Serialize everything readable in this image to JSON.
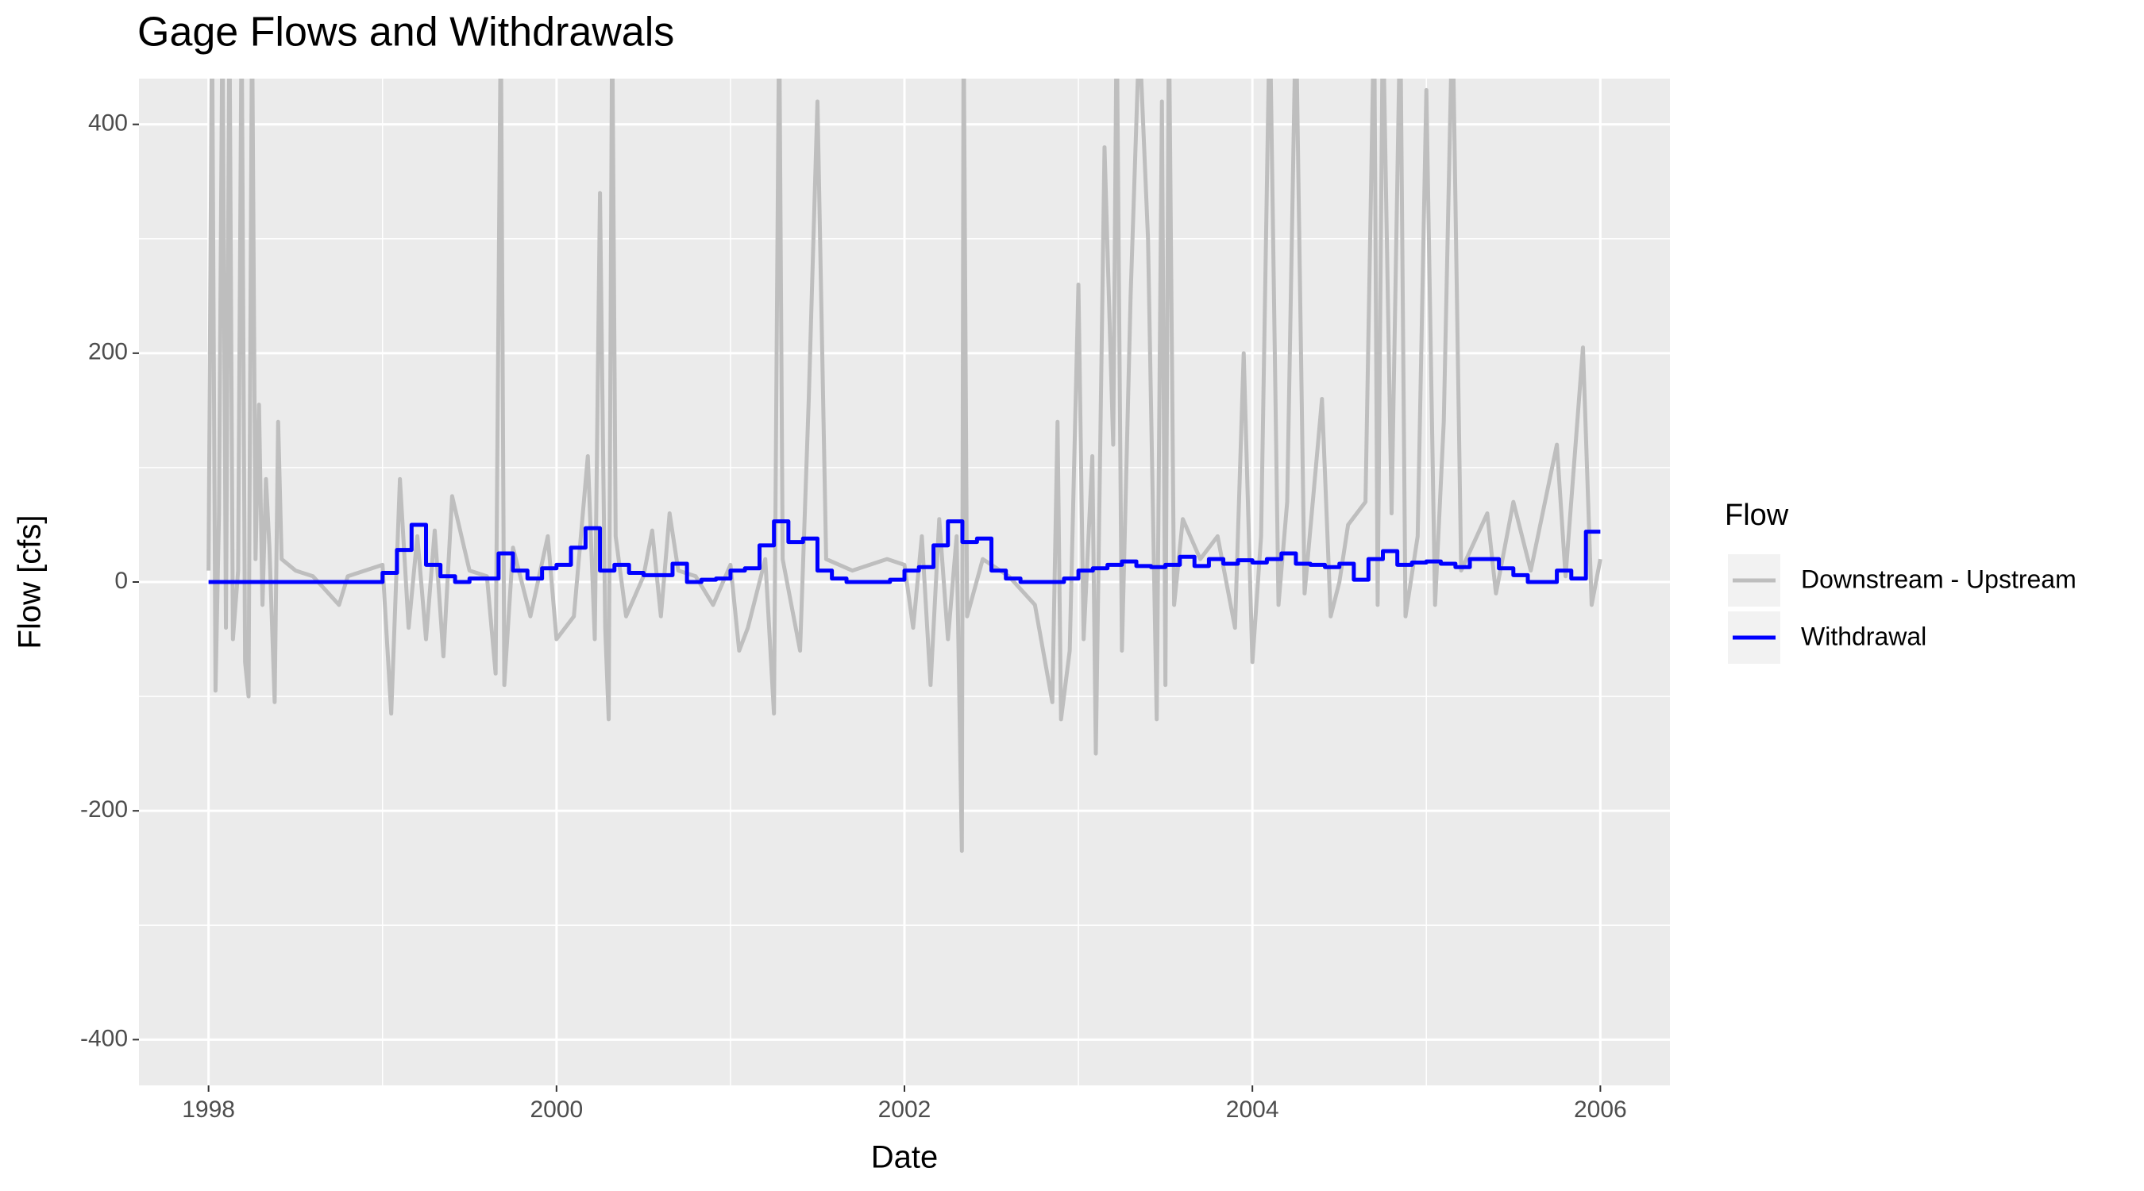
{
  "chart_data": {
    "type": "line",
    "title": "Gage Flows and Withdrawals",
    "x_label": "Date",
    "y_label": "Flow [cfs]",
    "legend_title": "Flow",
    "legend_position": "right",
    "grid": true,
    "xlim": [
      1997.6,
      2006.4
    ],
    "xticks": [
      1998,
      2000,
      2002,
      2004,
      2006
    ],
    "ylim": [
      -440,
      440
    ],
    "yticks": [
      -400,
      -200,
      0,
      200,
      400
    ],
    "series": [
      {
        "name": "Downstream - Upstream",
        "color": "#bebebe",
        "step": false,
        "x": [
          1998.0,
          1998.02,
          1998.04,
          1998.06,
          1998.08,
          1998.1,
          1998.12,
          1998.14,
          1998.17,
          1998.19,
          1998.21,
          1998.23,
          1998.25,
          1998.27,
          1998.29,
          1998.31,
          1998.33,
          1998.35,
          1998.38,
          1998.4,
          1998.42,
          1998.5,
          1998.6,
          1998.75,
          1998.8,
          1999.0,
          1999.05,
          1999.1,
          1999.15,
          1999.2,
          1999.25,
          1999.3,
          1999.35,
          1999.4,
          1999.5,
          1999.6,
          1999.65,
          1999.68,
          1999.7,
          1999.75,
          1999.85,
          1999.95,
          2000.0,
          2000.1,
          2000.18,
          2000.22,
          2000.25,
          2000.28,
          2000.3,
          2000.32,
          2000.34,
          2000.4,
          2000.5,
          2000.55,
          2000.6,
          2000.65,
          2000.7,
          2000.8,
          2000.9,
          2001.0,
          2001.05,
          2001.1,
          2001.2,
          2001.25,
          2001.28,
          2001.3,
          2001.4,
          2001.45,
          2001.5,
          2001.55,
          2001.7,
          2001.9,
          2002.0,
          2002.05,
          2002.1,
          2002.15,
          2002.2,
          2002.25,
          2002.3,
          2002.33,
          2002.34,
          2002.36,
          2002.45,
          2002.6,
          2002.75,
          2002.85,
          2002.88,
          2002.9,
          2002.95,
          2003.0,
          2003.03,
          2003.08,
          2003.1,
          2003.15,
          2003.2,
          2003.22,
          2003.25,
          2003.3,
          2003.35,
          2003.4,
          2003.45,
          2003.48,
          2003.5,
          2003.52,
          2003.55,
          2003.6,
          2003.7,
          2003.8,
          2003.9,
          2003.95,
          2004.0,
          2004.05,
          2004.1,
          2004.15,
          2004.2,
          2004.25,
          2004.3,
          2004.4,
          2004.45,
          2004.5,
          2004.55,
          2004.65,
          2004.7,
          2004.72,
          2004.75,
          2004.8,
          2004.85,
          2004.88,
          2004.95,
          2005.0,
          2005.05,
          2005.1,
          2005.15,
          2005.2,
          2005.35,
          2005.4,
          2005.5,
          2005.6,
          2005.75,
          2005.8,
          2005.9,
          2005.95,
          2006.0
        ],
        "values": [
          10,
          500,
          -95,
          60,
          500,
          -40,
          500,
          -50,
          10,
          500,
          -70,
          -100,
          500,
          20,
          155,
          -20,
          90,
          30,
          -105,
          140,
          20,
          10,
          5,
          -20,
          5,
          15,
          -115,
          90,
          -40,
          40,
          -50,
          45,
          -65,
          75,
          10,
          5,
          -80,
          500,
          -90,
          30,
          -30,
          40,
          -50,
          -30,
          110,
          -50,
          340,
          -40,
          -120,
          500,
          40,
          -30,
          5,
          45,
          -30,
          60,
          10,
          5,
          -20,
          15,
          -60,
          -40,
          20,
          -115,
          500,
          20,
          -60,
          160,
          420,
          20,
          10,
          20,
          15,
          -40,
          40,
          -90,
          55,
          -50,
          40,
          -235,
          500,
          -30,
          20,
          5,
          -20,
          -105,
          140,
          -120,
          -60,
          260,
          -50,
          110,
          -150,
          380,
          120,
          500,
          -60,
          250,
          480,
          300,
          -120,
          420,
          -90,
          500,
          -20,
          55,
          20,
          40,
          -40,
          200,
          -70,
          40,
          500,
          -20,
          70,
          500,
          -10,
          160,
          -30,
          0,
          50,
          70,
          500,
          -20,
          500,
          60,
          500,
          -30,
          40,
          430,
          -20,
          140,
          500,
          10,
          60,
          -10,
          70,
          10,
          120,
          5,
          205,
          -20,
          20
        ]
      },
      {
        "name": "Withdrawal",
        "color": "#0000ff",
        "step": true,
        "x": [
          1998,
          1998.083,
          1998.167,
          1998.25,
          1998.333,
          1998.417,
          1998.5,
          1998.583,
          1998.667,
          1998.75,
          1998.833,
          1998.917,
          1999,
          1999.083,
          1999.167,
          1999.25,
          1999.333,
          1999.417,
          1999.5,
          1999.583,
          1999.667,
          1999.75,
          1999.833,
          1999.917,
          2000,
          2000.083,
          2000.167,
          2000.25,
          2000.333,
          2000.417,
          2000.5,
          2000.583,
          2000.667,
          2000.75,
          2000.833,
          2000.917,
          2001,
          2001.083,
          2001.167,
          2001.25,
          2001.333,
          2001.417,
          2001.5,
          2001.583,
          2001.667,
          2001.75,
          2001.833,
          2001.917,
          2002,
          2002.083,
          2002.167,
          2002.25,
          2002.333,
          2002.417,
          2002.5,
          2002.583,
          2002.667,
          2002.75,
          2002.833,
          2002.917,
          2003,
          2003.083,
          2003.167,
          2003.25,
          2003.333,
          2003.417,
          2003.5,
          2003.583,
          2003.667,
          2003.75,
          2003.833,
          2003.917,
          2004,
          2004.083,
          2004.167,
          2004.25,
          2004.333,
          2004.417,
          2004.5,
          2004.583,
          2004.667,
          2004.75,
          2004.833,
          2004.917,
          2005,
          2005.083,
          2005.167,
          2005.25,
          2005.333,
          2005.417,
          2005.5,
          2005.583,
          2005.667,
          2005.75,
          2005.833,
          2005.917,
          2006
        ],
        "values": [
          0,
          0,
          0,
          0,
          0,
          0,
          0,
          0,
          0,
          0,
          0,
          0,
          8,
          28,
          50,
          15,
          5,
          0,
          3,
          3,
          25,
          10,
          3,
          12,
          15,
          30,
          47,
          10,
          15,
          8,
          6,
          6,
          16,
          0,
          2,
          3,
          10,
          12,
          32,
          53,
          35,
          38,
          10,
          3,
          0,
          0,
          0,
          2,
          10,
          13,
          32,
          53,
          35,
          38,
          10,
          3,
          0,
          0,
          0,
          3,
          10,
          12,
          15,
          18,
          14,
          13,
          15,
          22,
          14,
          20,
          16,
          19,
          17,
          20,
          25,
          16,
          15,
          13,
          16,
          2,
          20,
          27,
          15,
          17,
          18,
          16,
          13,
          20,
          20,
          12,
          6,
          0,
          0,
          10,
          3,
          44,
          44
        ]
      }
    ]
  }
}
